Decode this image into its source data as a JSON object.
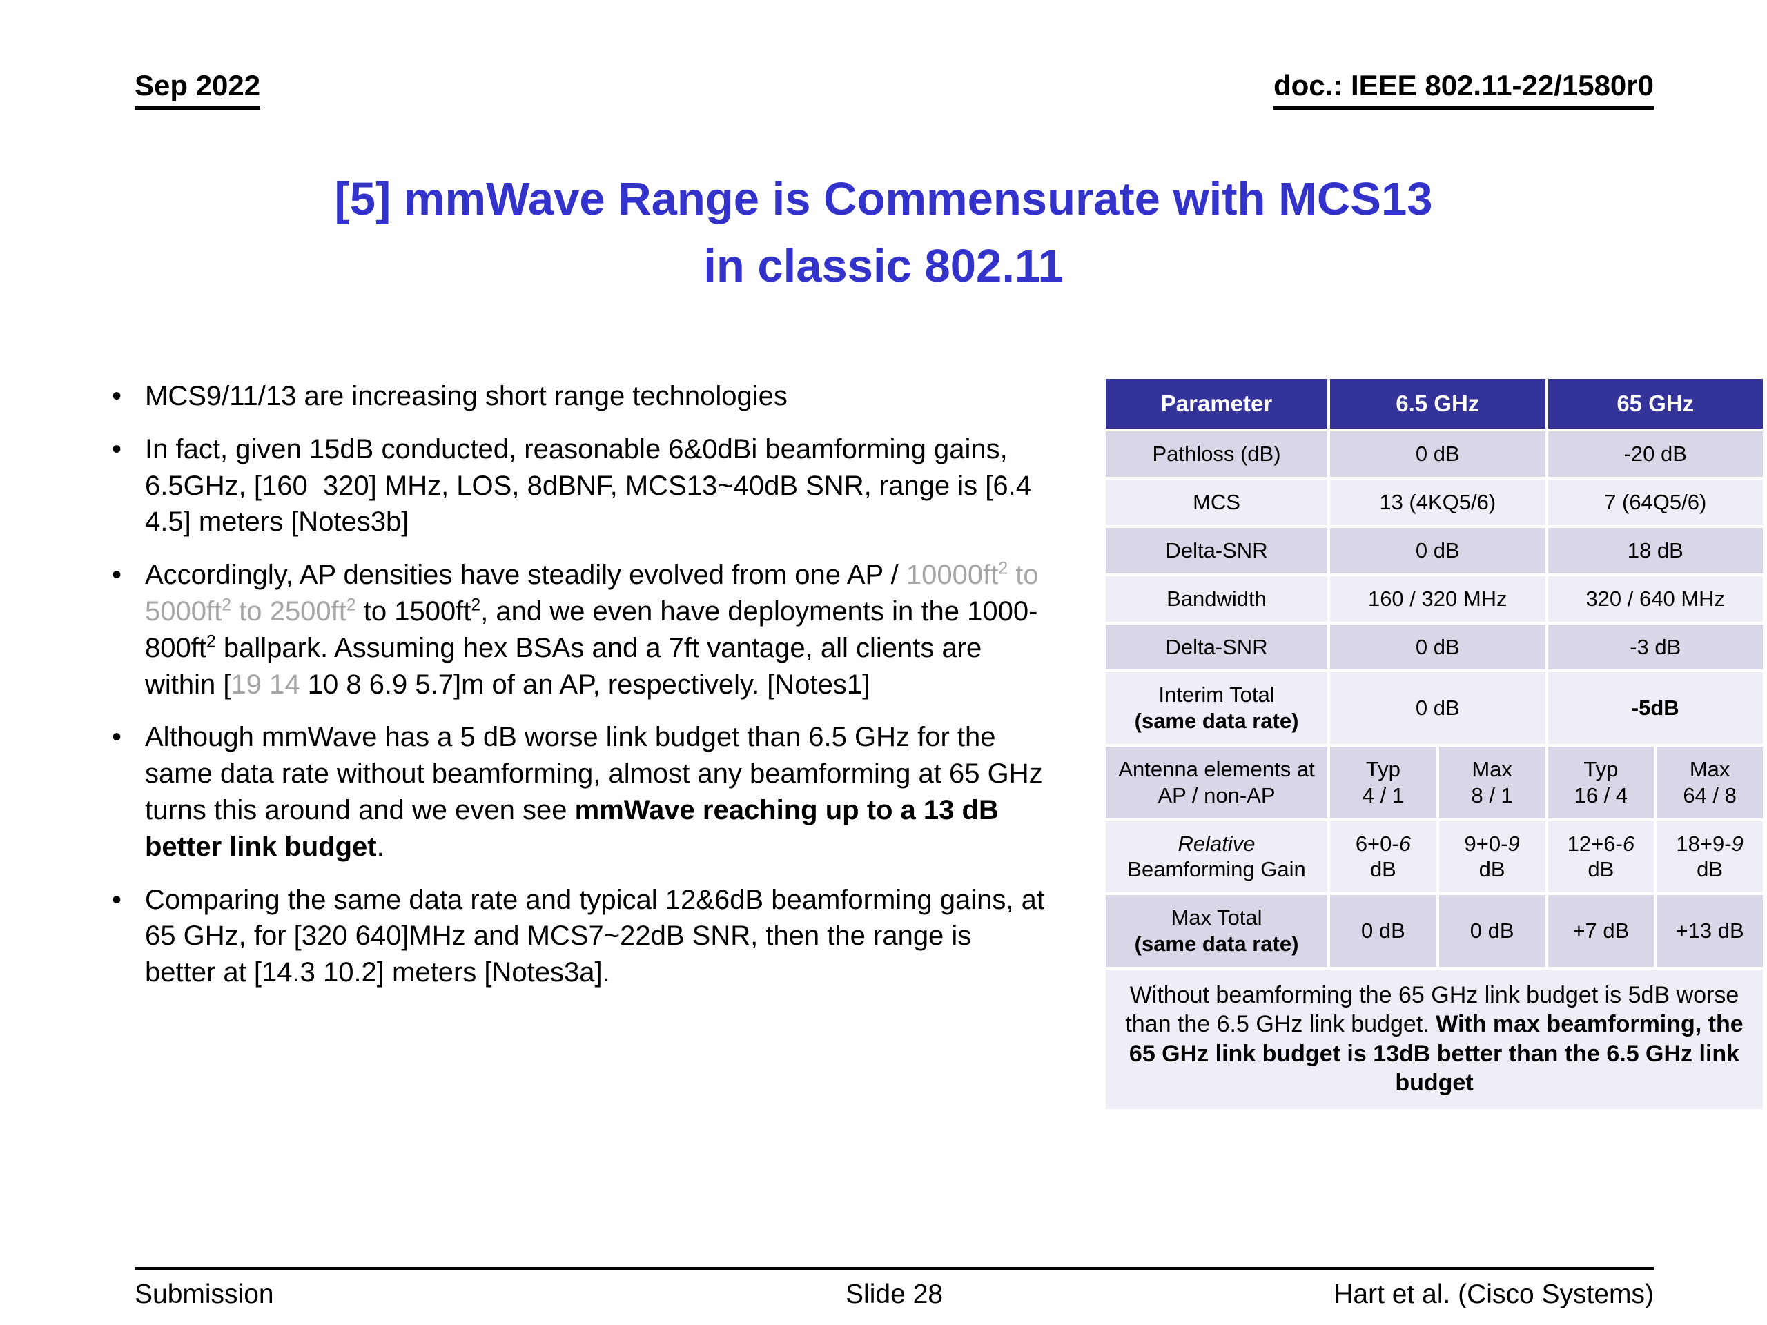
{
  "colors": {
    "title": "#3333CC",
    "table_header_bg": "#333399",
    "table_header_text": "#FFFFFF",
    "muted_text": "#A6A6A6",
    "band_dark": "#D7D7E8",
    "band_light": "#EEEEF6"
  },
  "header": {
    "date": "Sep 2022",
    "doc": "doc.: IEEE 802.11-22/1580r0"
  },
  "title_lines": [
    "[5] mmWave Range is Commensurate with MCS13",
    "in classic 802.11"
  ],
  "bullets": [
    [
      {
        "t": "MCS9/11/13 are increasing short range technologies"
      }
    ],
    [
      {
        "t": "In fact, given 15dB conducted, reasonable 6&0dBi beamforming gains, 6.5GHz, [160  320] MHz, LOS, 8dBNF, MCS13~40dB SNR, range is [6.4 4.5] meters [Notes3b]"
      }
    ],
    [
      {
        "t": "Accordingly, AP densities have steadily evolved from one AP / "
      },
      {
        "t": "10000ft",
        "gray": true
      },
      {
        "t": "2",
        "gray": true,
        "sup": true
      },
      {
        "t": " to 5000ft",
        "gray": true
      },
      {
        "t": "2",
        "gray": true,
        "sup": true
      },
      {
        "t": " to 2500ft",
        "gray": true
      },
      {
        "t": "2",
        "gray": true,
        "sup": true
      },
      {
        "t": " to 1500ft"
      },
      {
        "t": "2",
        "sup": true
      },
      {
        "t": ", and we even have deployments in the 1000-800ft"
      },
      {
        "t": "2",
        "sup": true
      },
      {
        "t": " ballpark. Assuming hex BSAs and a 7ft vantage, all clients are within ["
      },
      {
        "t": "19 14",
        "gray": true
      },
      {
        "t": " 10 8 6.9 5.7]m of an AP, respectively. [Notes1]"
      }
    ],
    [
      {
        "t": "Although mmWave has a 5 dB worse link budget than 6.5 GHz for the same data rate without beamforming, almost any beamforming at 65 GHz turns this around and we even see "
      },
      {
        "t": "mmWave reaching up to a 13 dB better link budget",
        "b": true
      },
      {
        "t": "."
      }
    ],
    [
      {
        "t": "Comparing the same data rate and typical 12&6dB beamforming gains, at 65 GHz, for [320 640]MHz and MCS7~22dB SNR, then the range is better at [14.3 10.2] meters [Notes3a]."
      }
    ]
  ],
  "table": {
    "header": [
      "Parameter",
      "6.5 GHz",
      "65 GHz"
    ],
    "rows": [
      {
        "param": [
          {
            "t": "Pathloss (dB)"
          }
        ],
        "cells": [
          {
            "span": 2,
            "segs": [
              {
                "t": "0 dB"
              }
            ]
          },
          {
            "span": 2,
            "segs": [
              {
                "t": "-20 dB"
              }
            ]
          }
        ]
      },
      {
        "param": [
          {
            "t": "MCS"
          }
        ],
        "cells": [
          {
            "span": 2,
            "segs": [
              {
                "t": "13 (4KQ5/6)"
              }
            ]
          },
          {
            "span": 2,
            "segs": [
              {
                "t": "7 (64Q5/6)"
              }
            ]
          }
        ]
      },
      {
        "param": [
          {
            "t": "Delta-SNR"
          }
        ],
        "cells": [
          {
            "span": 2,
            "segs": [
              {
                "t": "0 dB"
              }
            ]
          },
          {
            "span": 2,
            "segs": [
              {
                "t": "18 dB"
              }
            ]
          }
        ]
      },
      {
        "param": [
          {
            "t": "Bandwidth"
          }
        ],
        "cells": [
          {
            "span": 2,
            "segs": [
              {
                "t": "160 / 320 MHz"
              }
            ]
          },
          {
            "span": 2,
            "segs": [
              {
                "t": "320 / 640 MHz"
              }
            ]
          }
        ]
      },
      {
        "param": [
          {
            "t": "Delta-SNR"
          }
        ],
        "cells": [
          {
            "span": 2,
            "segs": [
              {
                "t": "0 dB"
              }
            ]
          },
          {
            "span": 2,
            "segs": [
              {
                "t": "-3 dB"
              }
            ]
          }
        ]
      },
      {
        "param": [
          {
            "t": "Interim Total"
          },
          {
            "br": true
          },
          {
            "t": "(same data rate)",
            "b": true
          }
        ],
        "cells": [
          {
            "span": 2,
            "segs": [
              {
                "t": "0 dB"
              }
            ]
          },
          {
            "span": 2,
            "segs": [
              {
                "t": "-5dB",
                "b": true
              }
            ]
          }
        ]
      },
      {
        "param": [
          {
            "t": "Antenna elements at AP / non-AP"
          }
        ],
        "cells": [
          {
            "segs": [
              {
                "t": "Typ"
              },
              {
                "br": true
              },
              {
                "t": "4 / 1"
              }
            ]
          },
          {
            "segs": [
              {
                "t": "Max"
              },
              {
                "br": true
              },
              {
                "t": "8 / 1"
              }
            ]
          },
          {
            "segs": [
              {
                "t": "Typ"
              },
              {
                "br": true
              },
              {
                "t": "16 / 4"
              }
            ]
          },
          {
            "segs": [
              {
                "t": "Max"
              },
              {
                "br": true
              },
              {
                "t": "64 / 8"
              }
            ]
          }
        ]
      },
      {
        "param": [
          {
            "t": "Relative",
            "i": true
          },
          {
            "br": true
          },
          {
            "t": "Beamforming Gain"
          }
        ],
        "cells": [
          {
            "segs": [
              {
                "t": "6+0-"
              },
              {
                "t": "6",
                "i": true
              },
              {
                "br": true
              },
              {
                "t": "dB"
              }
            ]
          },
          {
            "segs": [
              {
                "t": "9+0-"
              },
              {
                "t": "9",
                "i": true
              },
              {
                "br": true
              },
              {
                "t": "dB"
              }
            ]
          },
          {
            "segs": [
              {
                "t": "12+6-"
              },
              {
                "t": "6",
                "i": true
              },
              {
                "br": true
              },
              {
                "t": "dB"
              }
            ]
          },
          {
            "segs": [
              {
                "t": "18+9-"
              },
              {
                "t": "9",
                "i": true
              },
              {
                "br": true
              },
              {
                "t": "dB"
              }
            ]
          }
        ]
      },
      {
        "param": [
          {
            "t": "Max Total"
          },
          {
            "br": true
          },
          {
            "t": "(same data rate)",
            "b": true
          }
        ],
        "cells": [
          {
            "segs": [
              {
                "t": "0 dB"
              }
            ]
          },
          {
            "segs": [
              {
                "t": "0 dB"
              }
            ]
          },
          {
            "segs": [
              {
                "t": "+7 dB"
              }
            ]
          },
          {
            "segs": [
              {
                "t": "+13 dB"
              }
            ]
          }
        ]
      }
    ],
    "note": [
      {
        "t": "Without beamforming the 65 GHz link budget is 5dB worse than the 6.5 GHz link budget. "
      },
      {
        "t": "With max beamforming, the 65 GHz link budget is 13dB better than the 6.5 GHz link budget",
        "b": true
      }
    ]
  },
  "footer": {
    "left": "Submission",
    "center": "Slide 28",
    "right": "Hart et al. (Cisco Systems)"
  }
}
